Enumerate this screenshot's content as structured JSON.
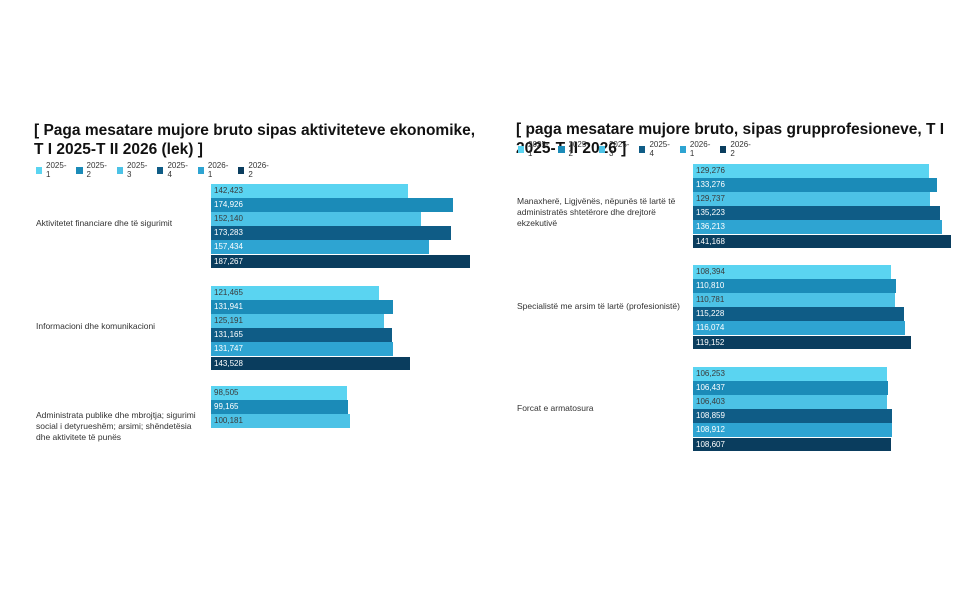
{
  "chart_data": [
    {
      "type": "bar",
      "orientation": "horizontal",
      "title": "[ Paga mesatare mujore bruto sipas aktiviteteve ekonomike, T I 2025-T II 2026 (lek) ]",
      "legend_position": "top-left",
      "categories": [
        "Aktivitetet financiare dhe të sigurimit",
        "Informacioni dhe komunikacioni",
        "Administrata publike dhe mbrojtja; sigurimi social i detyrueshëm; arsimi; shëndetësia dhe aktivitete të punës"
      ],
      "series": [
        {
          "name": "2025-1",
          "values": [
            142423,
            121465,
            98505
          ]
        },
        {
          "name": "2025-2",
          "values": [
            174926,
            131941,
            99165
          ]
        },
        {
          "name": "2025-3",
          "values": [
            152140,
            125191,
            100181
          ]
        },
        {
          "name": "2025-4",
          "values": [
            173283,
            131165,
            null
          ]
        },
        {
          "name": "2026-1",
          "values": [
            157434,
            131747,
            null
          ]
        },
        {
          "name": "2026-2",
          "values": [
            187267,
            143528,
            null
          ]
        }
      ],
      "data_labels": [
        [
          "142,423",
          "174,926",
          "152,140",
          "173,283",
          "157,434",
          "187,267"
        ],
        [
          "121,465",
          "131,941",
          "125,191",
          "131,165",
          "131,747",
          "143,528"
        ],
        [
          "98,505",
          "99,165",
          "100,181"
        ]
      ],
      "xlim": [
        0,
        200000
      ],
      "grid": false
    },
    {
      "type": "bar",
      "orientation": "horizontal",
      "title": "[ paga mesatare mujore bruto, sipas grupprofesioneve, T I 2025-T II 2026 ]",
      "legend_position": "top-left",
      "categories": [
        "Manaxherë, Ligjvënës, nëpunës të lartë të administratës shtetërore dhe drejtorë ekzekutivë",
        "Specialistë me arsim të lartë (profesionistë)",
        "Forcat e armatosura"
      ],
      "series": [
        {
          "name": "2025-1",
          "values": [
            129276,
            108394,
            106253
          ]
        },
        {
          "name": "2025-2",
          "values": [
            133276,
            110810,
            106437
          ]
        },
        {
          "name": "2025-3",
          "values": [
            129737,
            110781,
            106403
          ]
        },
        {
          "name": "2025-4",
          "values": [
            135223,
            115228,
            108859
          ]
        },
        {
          "name": "2026-1",
          "values": [
            136213,
            116074,
            108912
          ]
        },
        {
          "name": "2026-2",
          "values": [
            141168,
            119152,
            108607
          ]
        }
      ],
      "data_labels": [
        [
          "129,276",
          "133,276",
          "129,737",
          "135,223",
          "136,213",
          "141,168"
        ],
        [
          "108,394",
          "110,810",
          "110,781",
          "115,228",
          "116,074",
          "119,152"
        ],
        [
          "106,253",
          "106,437",
          "106,403",
          "108,859",
          "108,912",
          "108,607"
        ]
      ],
      "xlim": [
        0,
        150000
      ],
      "grid": false
    }
  ],
  "colors": {
    "series": [
      "#5ad4f1",
      "#1b8bb8",
      "#4cc2e6",
      "#0f5c86",
      "#2ea4d2",
      "#0a3d5e"
    ],
    "label_light": "#3a3a3a",
    "label_dark": "#ffffff"
  }
}
